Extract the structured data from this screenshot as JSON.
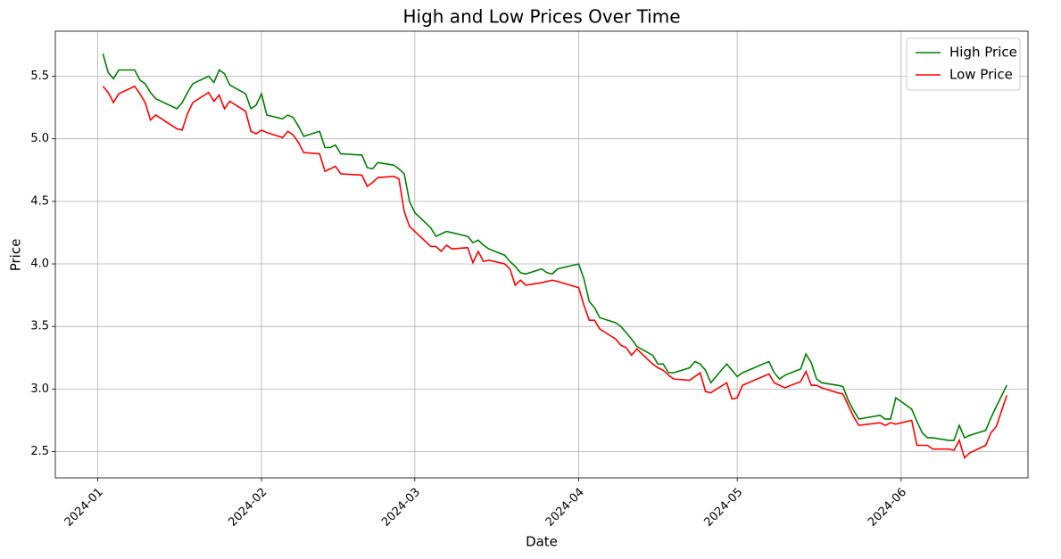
{
  "chart_data": {
    "type": "line",
    "title": "High and Low Prices Over Time",
    "x_label": "Date",
    "y_label": "Price",
    "x": [
      "2024-01-02",
      "2024-01-03",
      "2024-01-04",
      "2024-01-05",
      "2024-01-08",
      "2024-01-09",
      "2024-01-10",
      "2024-01-11",
      "2024-01-12",
      "2024-01-16",
      "2024-01-17",
      "2024-01-18",
      "2024-01-19",
      "2024-01-22",
      "2024-01-23",
      "2024-01-24",
      "2024-01-25",
      "2024-01-26",
      "2024-01-29",
      "2024-01-30",
      "2024-01-31",
      "2024-02-01",
      "2024-02-02",
      "2024-02-05",
      "2024-02-06",
      "2024-02-07",
      "2024-02-08",
      "2024-02-09",
      "2024-02-12",
      "2024-02-13",
      "2024-02-14",
      "2024-02-15",
      "2024-02-16",
      "2024-02-20",
      "2024-02-21",
      "2024-02-22",
      "2024-02-23",
      "2024-02-26",
      "2024-02-27",
      "2024-02-28",
      "2024-02-29",
      "2024-03-01",
      "2024-03-04",
      "2024-03-05",
      "2024-03-06",
      "2024-03-07",
      "2024-03-08",
      "2024-03-11",
      "2024-03-12",
      "2024-03-13",
      "2024-03-14",
      "2024-03-15",
      "2024-03-18",
      "2024-03-19",
      "2024-03-20",
      "2024-03-21",
      "2024-03-22",
      "2024-03-25",
      "2024-03-26",
      "2024-03-27",
      "2024-03-28",
      "2024-04-01",
      "2024-04-02",
      "2024-04-03",
      "2024-04-04",
      "2024-04-05",
      "2024-04-08",
      "2024-04-09",
      "2024-04-10",
      "2024-04-11",
      "2024-04-12",
      "2024-04-15",
      "2024-04-16",
      "2024-04-17",
      "2024-04-18",
      "2024-04-19",
      "2024-04-22",
      "2024-04-23",
      "2024-04-24",
      "2024-04-25",
      "2024-04-26",
      "2024-04-29",
      "2024-04-30",
      "2024-05-01",
      "2024-05-02",
      "2024-05-07",
      "2024-05-08",
      "2024-05-09",
      "2024-05-10",
      "2024-05-13",
      "2024-05-14",
      "2024-05-15",
      "2024-05-16",
      "2024-05-17",
      "2024-05-20",
      "2024-05-21",
      "2024-05-22",
      "2024-05-23",
      "2024-05-24",
      "2024-05-28",
      "2024-05-29",
      "2024-05-30",
      "2024-05-31",
      "2024-06-03",
      "2024-06-04",
      "2024-06-05",
      "2024-06-06",
      "2024-06-07",
      "2024-06-10",
      "2024-06-11",
      "2024-06-12",
      "2024-06-13",
      "2024-06-14",
      "2024-06-17",
      "2024-06-18",
      "2024-06-19",
      "2024-06-21"
    ],
    "series": [
      {
        "name": "High Price",
        "color": "#008000",
        "values": [
          5.68,
          5.53,
          5.48,
          5.55,
          5.55,
          5.47,
          5.44,
          5.37,
          5.32,
          5.24,
          5.29,
          5.37,
          5.44,
          5.5,
          5.45,
          5.55,
          5.52,
          5.43,
          5.36,
          5.24,
          5.27,
          5.36,
          5.19,
          5.16,
          5.19,
          5.17,
          5.1,
          5.02,
          5.06,
          4.93,
          4.93,
          4.95,
          4.88,
          4.87,
          4.77,
          4.76,
          4.81,
          4.79,
          4.76,
          4.72,
          4.5,
          4.41,
          4.29,
          4.22,
          4.24,
          4.26,
          4.25,
          4.22,
          4.17,
          4.19,
          4.15,
          4.12,
          4.07,
          4.02,
          3.98,
          3.93,
          3.92,
          3.96,
          3.93,
          3.92,
          3.96,
          4.0,
          3.88,
          3.7,
          3.65,
          3.57,
          3.53,
          3.5,
          3.45,
          3.4,
          3.34,
          3.27,
          3.2,
          3.2,
          3.13,
          3.13,
          3.17,
          3.22,
          3.2,
          3.15,
          3.05,
          3.2,
          3.15,
          3.1,
          3.13,
          3.22,
          3.13,
          3.08,
          3.11,
          3.16,
          3.28,
          3.21,
          3.08,
          3.05,
          3.03,
          3.02,
          2.91,
          2.83,
          2.76,
          2.79,
          2.76,
          2.76,
          2.93,
          2.84,
          2.74,
          2.65,
          2.61,
          2.61,
          2.59,
          2.59,
          2.71,
          2.61,
          2.63,
          2.67,
          2.77,
          2.86,
          3.03
        ]
      },
      {
        "name": "Low Price",
        "color": "#ff0000",
        "values": [
          5.42,
          5.37,
          5.29,
          5.36,
          5.42,
          5.36,
          5.29,
          5.15,
          5.19,
          5.08,
          5.07,
          5.2,
          5.29,
          5.37,
          5.3,
          5.35,
          5.24,
          5.3,
          5.22,
          5.06,
          5.04,
          5.07,
          5.05,
          5.01,
          5.06,
          5.03,
          4.97,
          4.89,
          4.88,
          4.74,
          4.76,
          4.78,
          4.72,
          4.71,
          4.62,
          4.65,
          4.69,
          4.7,
          4.68,
          4.42,
          4.3,
          4.26,
          4.14,
          4.14,
          4.1,
          4.15,
          4.12,
          4.13,
          4.01,
          4.1,
          4.02,
          4.03,
          4.0,
          3.96,
          3.83,
          3.87,
          3.83,
          3.85,
          3.86,
          3.87,
          3.86,
          3.81,
          3.67,
          3.55,
          3.55,
          3.48,
          3.4,
          3.35,
          3.33,
          3.27,
          3.32,
          3.2,
          3.17,
          3.15,
          3.11,
          3.08,
          3.07,
          3.1,
          3.13,
          2.98,
          2.97,
          3.05,
          2.92,
          2.93,
          3.03,
          3.12,
          3.05,
          3.03,
          3.01,
          3.06,
          3.14,
          3.03,
          3.03,
          3.01,
          2.97,
          2.96,
          2.87,
          2.78,
          2.71,
          2.73,
          2.71,
          2.73,
          2.72,
          2.75,
          2.55,
          2.55,
          2.55,
          2.52,
          2.52,
          2.51,
          2.59,
          2.45,
          2.49,
          2.55,
          2.65,
          2.7,
          2.95
        ]
      }
    ],
    "xlim": [
      "2023-12-24",
      "2024-06-25"
    ],
    "xticks": [
      {
        "value": "2024-01-01",
        "label": "2024-01"
      },
      {
        "value": "2024-02-01",
        "label": "2024-02"
      },
      {
        "value": "2024-03-01",
        "label": "2024-03"
      },
      {
        "value": "2024-04-01",
        "label": "2024-04"
      },
      {
        "value": "2024-05-01",
        "label": "2024-05"
      },
      {
        "value": "2024-06-01",
        "label": "2024-06"
      }
    ],
    "ylim": [
      2.29,
      5.86
    ],
    "yticks": [
      2.5,
      {
        "value": 3,
        "label": "3.0"
      },
      3.5,
      {
        "value": 4,
        "label": "4.0"
      },
      4.5,
      {
        "value": 5,
        "label": "5.0"
      },
      5.5
    ],
    "grid": true,
    "legend": "upper right"
  }
}
